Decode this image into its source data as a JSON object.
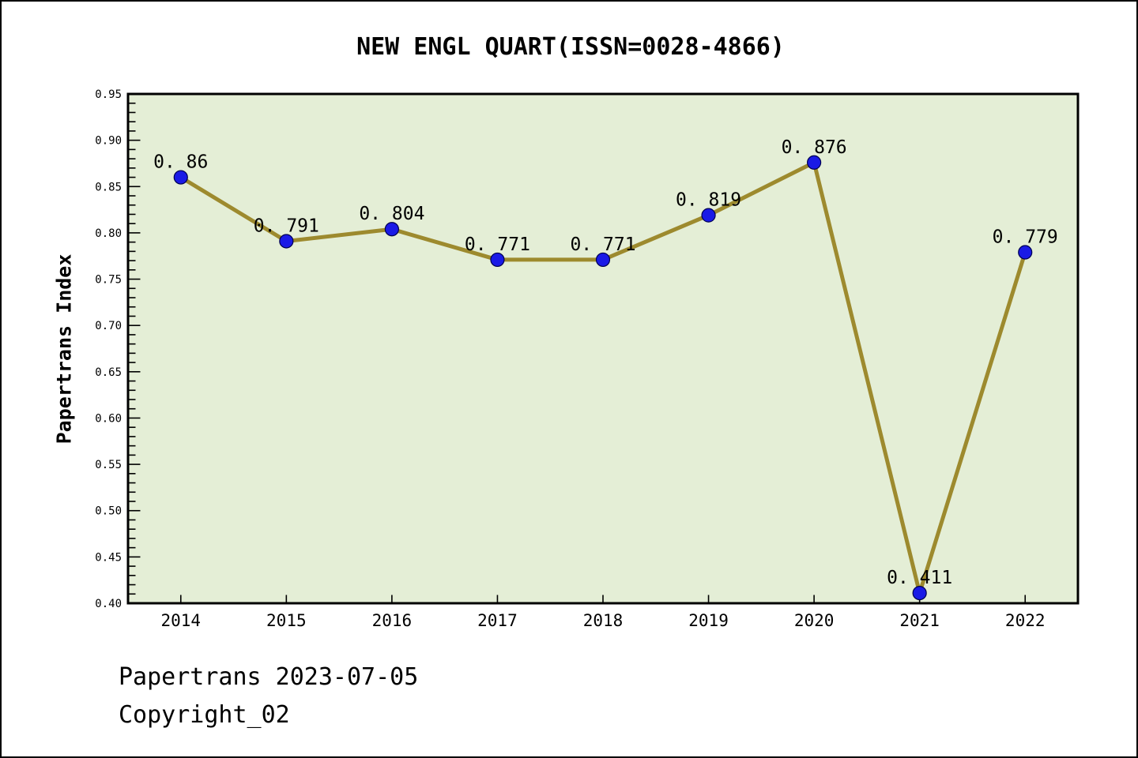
{
  "title": "NEW ENGL QUART(ISSN=0028-4866)",
  "footer": {
    "line1": "Papertrans 2023-07-05",
    "line2": "Copyright_02"
  },
  "colors": {
    "page_background": "#ffffff",
    "page_border": "#000000",
    "plot_background": "#e4eed6",
    "axis": "#000000",
    "line": "#9d8a2e",
    "marker_fill": "#1a1ae6",
    "marker_edge": "#000050",
    "text": "#000000"
  },
  "chart_data": {
    "type": "line",
    "title": "NEW ENGL QUART(ISSN=0028-4866)",
    "xlabel": "",
    "ylabel": "Papertrans Index",
    "categories": [
      "2014",
      "2015",
      "2016",
      "2017",
      "2018",
      "2019",
      "2020",
      "2021",
      "2022"
    ],
    "values": [
      0.86,
      0.791,
      0.804,
      0.771,
      0.771,
      0.819,
      0.876,
      0.411,
      0.779
    ],
    "point_labels": [
      "0. 86",
      "0. 791",
      "0. 804",
      "0. 771",
      "0. 771",
      "0. 819",
      "0. 876",
      "0. 411",
      "0. 779"
    ],
    "ylim": [
      0.4,
      0.95
    ],
    "y_major_step": 0.05,
    "y_minor_step": 0.01,
    "y_tick_labels": [
      "0.40",
      "0.45",
      "0.50",
      "0.55",
      "0.60",
      "0.65",
      "0.70",
      "0.75",
      "0.80",
      "0.85",
      "0.90",
      "0.95"
    ],
    "grid": false,
    "legend": false,
    "plot_bg_color": "#e4eed6",
    "line_color": "#9d8a2e",
    "marker_color": "#1a1ae6",
    "marker_edge_color": "#000050"
  }
}
